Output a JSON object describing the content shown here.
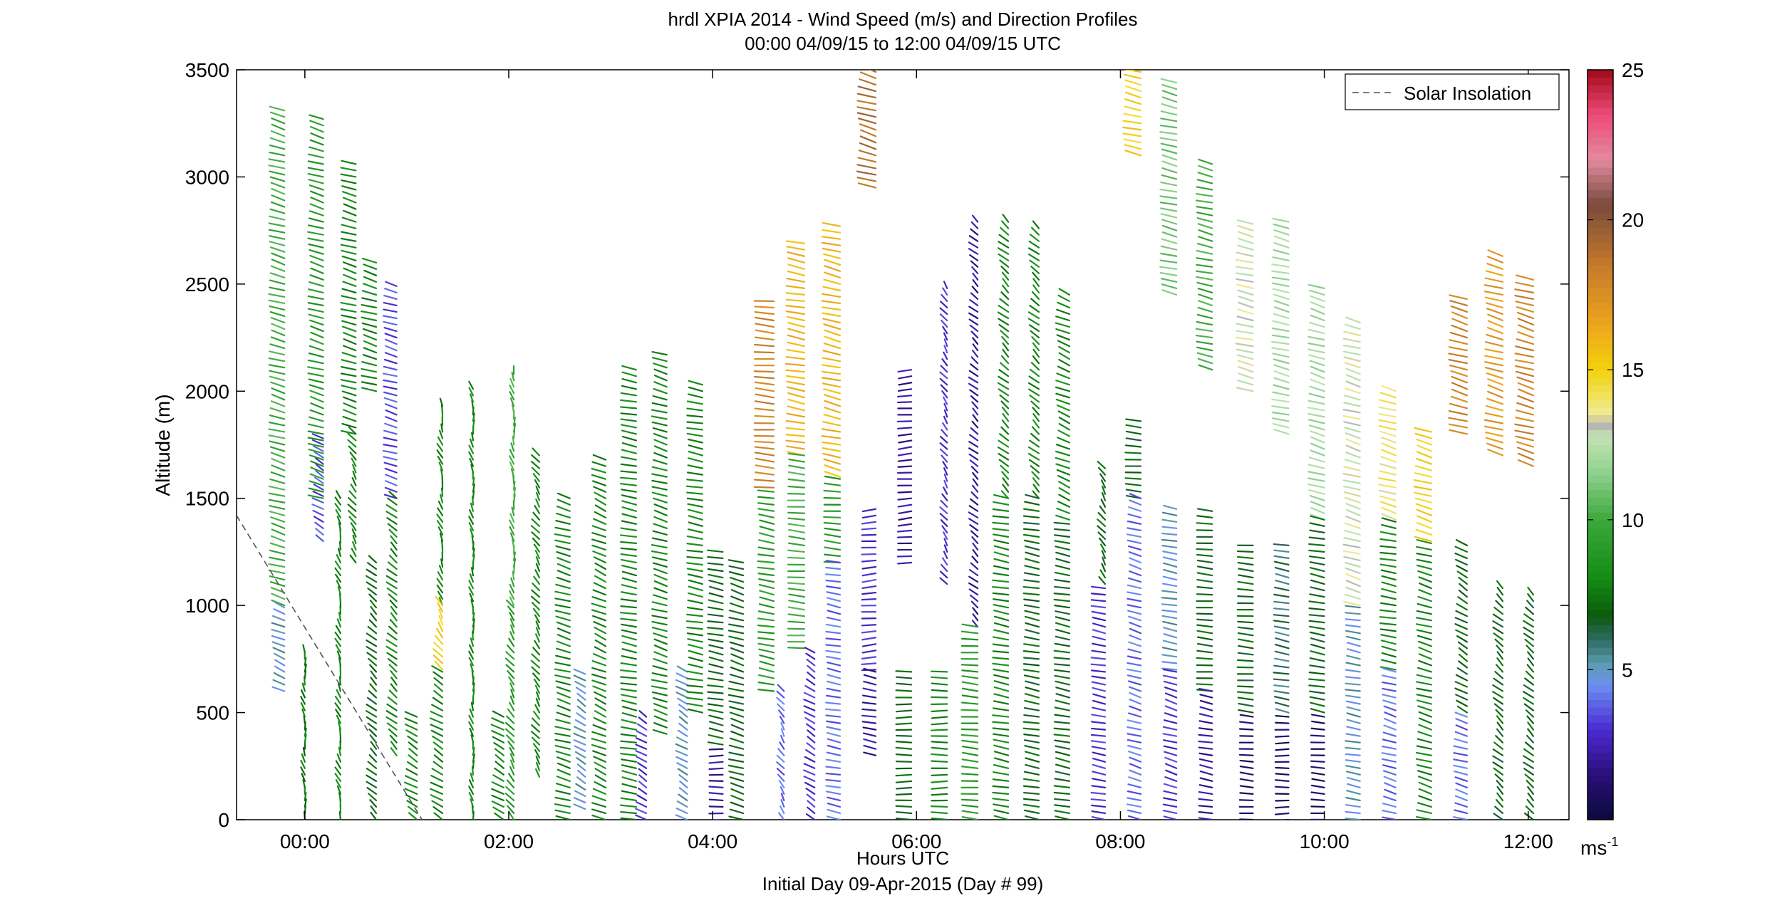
{
  "chart_data": {
    "type": "wind-barb-profile",
    "title": "hrdl XPIA 2014 - Wind Speed (m/s) and Direction Profiles",
    "subtitle": "00:00 04/09/15 to 12:00 04/09/15  UTC",
    "xlabel": "Hours UTC",
    "footer": "Initial Day 09-Apr-2015 (Day # 99)",
    "ylabel": "Altitude (m)",
    "x_range_hours": [
      -0.67,
      12.4
    ],
    "y_range_m": [
      0,
      3500
    ],
    "x_ticks": [
      {
        "hour": 0,
        "label": "00:00"
      },
      {
        "hour": 2,
        "label": "02:00"
      },
      {
        "hour": 4,
        "label": "04:00"
      },
      {
        "hour": 6,
        "label": "06:00"
      },
      {
        "hour": 8,
        "label": "08:00"
      },
      {
        "hour": 10,
        "label": "10:00"
      },
      {
        "hour": 12,
        "label": "12:00"
      }
    ],
    "y_ticks": [
      {
        "value": 0,
        "label": "0"
      },
      {
        "value": 500,
        "label": "500"
      },
      {
        "value": 1000,
        "label": "1000"
      },
      {
        "value": 1500,
        "label": "1500"
      },
      {
        "value": 2000,
        "label": "2000"
      },
      {
        "value": 2500,
        "label": "2500"
      },
      {
        "value": 3000,
        "label": "3000"
      },
      {
        "value": 3500,
        "label": "3500"
      }
    ],
    "legend": {
      "label": "Solar Insolation",
      "placement": "top-right",
      "style": "dashed",
      "color": "#555555"
    },
    "solar_insolation_line": [
      {
        "hour": -0.67,
        "alt": 1420
      },
      {
        "hour": 1.15,
        "alt": 0
      }
    ],
    "colorbar": {
      "range": [
        0,
        25
      ],
      "ticks": [
        {
          "value": 5,
          "label": "5"
        },
        {
          "value": 10,
          "label": "10"
        },
        {
          "value": 15,
          "label": "15"
        },
        {
          "value": 20,
          "label": "20"
        },
        {
          "value": 25,
          "label": "25"
        }
      ],
      "unit_label": "ms",
      "unit_exponent": "-1",
      "stops": [
        {
          "v": 0,
          "c": "#0b0b3a"
        },
        {
          "v": 1.5,
          "c": "#2a0f7a"
        },
        {
          "v": 3,
          "c": "#4a2ad0"
        },
        {
          "v": 4.5,
          "c": "#6c8ff2"
        },
        {
          "v": 5.2,
          "c": "#5c9cb0"
        },
        {
          "v": 6,
          "c": "#2f6a62"
        },
        {
          "v": 6.8,
          "c": "#0b5a0b"
        },
        {
          "v": 8,
          "c": "#138a13"
        },
        {
          "v": 10,
          "c": "#3ca83c"
        },
        {
          "v": 11.5,
          "c": "#8cd08c"
        },
        {
          "v": 12.8,
          "c": "#c4e4b4"
        },
        {
          "v": 13.1,
          "c": "#b4b4b4"
        },
        {
          "v": 13.6,
          "c": "#f0ea8c"
        },
        {
          "v": 15,
          "c": "#f2d20e"
        },
        {
          "v": 16.5,
          "c": "#eea51d"
        },
        {
          "v": 18.5,
          "c": "#c47a2a"
        },
        {
          "v": 20.5,
          "c": "#7a4a3c"
        },
        {
          "v": 22,
          "c": "#e28a9e"
        },
        {
          "v": 23.5,
          "c": "#ee4a78"
        },
        {
          "v": 25,
          "c": "#a00a1a"
        }
      ]
    },
    "profiles": [
      {
        "hour": -0.2,
        "segments": [
          {
            "bottom": 1000,
            "top": 3310,
            "dir": 300,
            "speed": 10
          },
          {
            "bottom": 600,
            "top": 1000,
            "dir": 310,
            "speed": 5
          }
        ]
      },
      {
        "hour": 0.0,
        "segments": [
          {
            "bottom": 0,
            "top": 800,
            "dir": 355,
            "speed": 7.5
          }
        ]
      },
      {
        "hour": 0.18,
        "segments": [
          {
            "bottom": 1500,
            "top": 3290,
            "dir": 300,
            "speed": 9
          },
          {
            "bottom": 1300,
            "top": 1800,
            "dir": 320,
            "speed": 3.5
          }
        ]
      },
      {
        "hour": 0.35,
        "segments": [
          {
            "bottom": 0,
            "top": 1500,
            "dir": 350,
            "speed": 8
          }
        ]
      },
      {
        "hour": 0.5,
        "segments": [
          {
            "bottom": 1800,
            "top": 3080,
            "dir": 300,
            "speed": 8
          },
          {
            "bottom": 1200,
            "top": 1800,
            "dir": 340,
            "speed": 8
          }
        ]
      },
      {
        "hour": 0.7,
        "segments": [
          {
            "bottom": 0,
            "top": 1200,
            "dir": 330,
            "speed": 7
          },
          {
            "bottom": 2000,
            "top": 2600,
            "dir": 300,
            "speed": 8
          }
        ]
      },
      {
        "hour": 0.9,
        "segments": [
          {
            "bottom": 1500,
            "top": 2500,
            "dir": 300,
            "speed": 3.5
          },
          {
            "bottom": 300,
            "top": 1500,
            "dir": 330,
            "speed": 8
          }
        ]
      },
      {
        "hour": 1.1,
        "segments": [
          {
            "bottom": 0,
            "top": 500,
            "dir": 320,
            "speed": 8
          }
        ]
      },
      {
        "hour": 1.35,
        "segments": [
          {
            "bottom": 1000,
            "top": 1950,
            "dir": 350,
            "speed": 8
          },
          {
            "bottom": 700,
            "top": 1000,
            "dir": 340,
            "speed": 15
          },
          {
            "bottom": 0,
            "top": 700,
            "dir": 320,
            "speed": 8
          }
        ]
      },
      {
        "hour": 1.65,
        "segments": [
          {
            "bottom": 0,
            "top": 2020,
            "dir": 355,
            "speed": 8
          }
        ]
      },
      {
        "hour": 1.95,
        "segments": [
          {
            "bottom": 0,
            "top": 500,
            "dir": 320,
            "speed": 8
          }
        ]
      },
      {
        "hour": 2.05,
        "segments": [
          {
            "bottom": 1000,
            "top": 2100,
            "dir": 355,
            "speed": 10
          },
          {
            "bottom": 0,
            "top": 1000,
            "dir": 340,
            "speed": 9
          }
        ]
      },
      {
        "hour": 2.3,
        "segments": [
          {
            "bottom": 200,
            "top": 1700,
            "dir": 340,
            "speed": 8
          }
        ]
      },
      {
        "hour": 2.6,
        "segments": [
          {
            "bottom": 0,
            "top": 1500,
            "dir": 300,
            "speed": 8
          }
        ]
      },
      {
        "hour": 2.75,
        "segments": [
          {
            "bottom": 50,
            "top": 700,
            "dir": 320,
            "speed": 5
          }
        ]
      },
      {
        "hour": 2.95,
        "segments": [
          {
            "bottom": 0,
            "top": 1700,
            "dir": 310,
            "speed": 8
          }
        ]
      },
      {
        "hour": 3.25,
        "segments": [
          {
            "bottom": 0,
            "top": 2120,
            "dir": 290,
            "speed": 8
          }
        ]
      },
      {
        "hour": 3.35,
        "segments": [
          {
            "bottom": 0,
            "top": 500,
            "dir": 320,
            "speed": 3
          }
        ]
      },
      {
        "hour": 3.55,
        "segments": [
          {
            "bottom": 400,
            "top": 2180,
            "dir": 300,
            "speed": 8
          }
        ]
      },
      {
        "hour": 3.75,
        "segments": [
          {
            "bottom": 0,
            "top": 700,
            "dir": 320,
            "speed": 5
          }
        ]
      },
      {
        "hour": 3.9,
        "segments": [
          {
            "bottom": 500,
            "top": 2050,
            "dir": 290,
            "speed": 8
          }
        ]
      },
      {
        "hour": 4.1,
        "segments": [
          {
            "bottom": 0,
            "top": 350,
            "dir": 270,
            "speed": 2
          },
          {
            "bottom": 350,
            "top": 1250,
            "dir": 290,
            "speed": 7
          }
        ]
      },
      {
        "hour": 4.3,
        "segments": [
          {
            "bottom": 0,
            "top": 1200,
            "dir": 300,
            "speed": 7
          }
        ]
      },
      {
        "hour": 4.6,
        "segments": [
          {
            "bottom": 1550,
            "top": 2440,
            "dir": 280,
            "speed": 18
          },
          {
            "bottom": 600,
            "top": 1550,
            "dir": 290,
            "speed": 9
          }
        ]
      },
      {
        "hour": 4.7,
        "segments": [
          {
            "bottom": 0,
            "top": 600,
            "dir": 340,
            "speed": 4
          }
        ]
      },
      {
        "hour": 4.9,
        "segments": [
          {
            "bottom": 1700,
            "top": 2700,
            "dir": 290,
            "speed": 16
          },
          {
            "bottom": 800,
            "top": 1700,
            "dir": 280,
            "speed": 10
          }
        ]
      },
      {
        "hour": 5.0,
        "segments": [
          {
            "bottom": 0,
            "top": 800,
            "dir": 320,
            "speed": 3
          }
        ]
      },
      {
        "hour": 5.25,
        "segments": [
          {
            "bottom": 1600,
            "top": 2780,
            "dir": 295,
            "speed": 16
          },
          {
            "bottom": 1200,
            "top": 1600,
            "dir": 280,
            "speed": 9
          },
          {
            "bottom": 0,
            "top": 1200,
            "dir": 290,
            "speed": 4
          }
        ]
      },
      {
        "hour": 5.6,
        "segments": [
          {
            "bottom": 2950,
            "top": 3500,
            "dir": 300,
            "speed": 19
          },
          {
            "bottom": 700,
            "top": 1450,
            "dir": 260,
            "speed": 3
          },
          {
            "bottom": 300,
            "top": 700,
            "dir": 290,
            "speed": 2
          }
        ]
      },
      {
        "hour": 5.95,
        "segments": [
          {
            "bottom": 1200,
            "top": 2100,
            "dir": 260,
            "speed": 2
          },
          {
            "bottom": 0,
            "top": 700,
            "dir": 270,
            "speed": 7
          }
        ]
      },
      {
        "hour": 6.3,
        "segments": [
          {
            "bottom": 1100,
            "top": 2500,
            "dir": 340,
            "speed": 3
          },
          {
            "bottom": 0,
            "top": 700,
            "dir": 270,
            "speed": 8
          }
        ]
      },
      {
        "hour": 6.6,
        "segments": [
          {
            "bottom": 900,
            "top": 2800,
            "dir": 330,
            "speed": 2
          },
          {
            "bottom": 0,
            "top": 900,
            "dir": 280,
            "speed": 9
          }
        ]
      },
      {
        "hour": 6.9,
        "segments": [
          {
            "bottom": 1500,
            "top": 2800,
            "dir": 330,
            "speed": 8
          },
          {
            "bottom": 0,
            "top": 1500,
            "dir": 290,
            "speed": 8
          }
        ]
      },
      {
        "hour": 7.2,
        "segments": [
          {
            "bottom": 1500,
            "top": 2770,
            "dir": 330,
            "speed": 8
          },
          {
            "bottom": 0,
            "top": 1500,
            "dir": 290,
            "speed": 7
          }
        ]
      },
      {
        "hour": 7.5,
        "segments": [
          {
            "bottom": 1400,
            "top": 2450,
            "dir": 310,
            "speed": 8
          },
          {
            "bottom": 0,
            "top": 1400,
            "dir": 290,
            "speed": 7
          }
        ]
      },
      {
        "hour": 7.85,
        "segments": [
          {
            "bottom": 1100,
            "top": 1640,
            "dir": 340,
            "speed": 7
          },
          {
            "bottom": 0,
            "top": 1100,
            "dir": 290,
            "speed": 3
          }
        ]
      },
      {
        "hour": 8.2,
        "segments": [
          {
            "bottom": 3100,
            "top": 3500,
            "dir": 295,
            "speed": 15
          },
          {
            "bottom": 1500,
            "top": 1880,
            "dir": 280,
            "speed": 7
          },
          {
            "bottom": 0,
            "top": 1500,
            "dir": 300,
            "speed": 4
          }
        ]
      },
      {
        "hour": 8.55,
        "segments": [
          {
            "bottom": 2450,
            "top": 3440,
            "dir": 295,
            "speed": 11
          },
          {
            "bottom": 700,
            "top": 1450,
            "dir": 290,
            "speed": 5
          },
          {
            "bottom": 0,
            "top": 700,
            "dir": 300,
            "speed": 3
          }
        ]
      },
      {
        "hour": 8.9,
        "segments": [
          {
            "bottom": 2100,
            "top": 3060,
            "dir": 295,
            "speed": 10
          },
          {
            "bottom": 600,
            "top": 1450,
            "dir": 280,
            "speed": 7
          },
          {
            "bottom": 0,
            "top": 600,
            "dir": 290,
            "speed": 2
          }
        ]
      },
      {
        "hour": 9.3,
        "segments": [
          {
            "bottom": 2000,
            "top": 2780,
            "dir": 295,
            "speed": 13
          },
          {
            "bottom": 500,
            "top": 1300,
            "dir": 280,
            "speed": 7
          },
          {
            "bottom": 0,
            "top": 500,
            "dir": 280,
            "speed": 1
          }
        ]
      },
      {
        "hour": 9.65,
        "segments": [
          {
            "bottom": 1800,
            "top": 2790,
            "dir": 295,
            "speed": 12
          },
          {
            "bottom": 500,
            "top": 1300,
            "dir": 290,
            "speed": 6
          },
          {
            "bottom": 0,
            "top": 500,
            "dir": 270,
            "speed": 1
          }
        ]
      },
      {
        "hour": 10.0,
        "segments": [
          {
            "bottom": 1400,
            "top": 2480,
            "dir": 300,
            "speed": 12
          },
          {
            "bottom": 500,
            "top": 1400,
            "dir": 290,
            "speed": 7
          },
          {
            "bottom": 0,
            "top": 500,
            "dir": 280,
            "speed": 1
          }
        ]
      },
      {
        "hour": 10.35,
        "segments": [
          {
            "bottom": 1000,
            "top": 2330,
            "dir": 300,
            "speed": 13
          },
          {
            "bottom": 0,
            "top": 1000,
            "dir": 290,
            "speed": 5
          }
        ]
      },
      {
        "hour": 10.7,
        "segments": [
          {
            "bottom": 1400,
            "top": 2000,
            "dir": 300,
            "speed": 14
          },
          {
            "bottom": 700,
            "top": 1400,
            "dir": 290,
            "speed": 8
          },
          {
            "bottom": 0,
            "top": 700,
            "dir": 300,
            "speed": 4
          }
        ]
      },
      {
        "hour": 11.05,
        "segments": [
          {
            "bottom": 1300,
            "top": 1820,
            "dir": 300,
            "speed": 15
          },
          {
            "bottom": 0,
            "top": 1300,
            "dir": 300,
            "speed": 8
          }
        ]
      },
      {
        "hour": 11.4,
        "segments": [
          {
            "bottom": 1800,
            "top": 2450,
            "dir": 300,
            "speed": 18
          },
          {
            "bottom": 500,
            "top": 1300,
            "dir": 320,
            "speed": 7
          },
          {
            "bottom": 0,
            "top": 500,
            "dir": 300,
            "speed": 4
          }
        ]
      },
      {
        "hour": 11.75,
        "segments": [
          {
            "bottom": 1700,
            "top": 2650,
            "dir": 300,
            "speed": 17
          },
          {
            "bottom": 0,
            "top": 1100,
            "dir": 330,
            "speed": 7
          }
        ]
      },
      {
        "hour": 12.05,
        "segments": [
          {
            "bottom": 1650,
            "top": 2520,
            "dir": 300,
            "speed": 18
          },
          {
            "bottom": 0,
            "top": 1050,
            "dir": 330,
            "speed": 7
          }
        ]
      }
    ]
  }
}
